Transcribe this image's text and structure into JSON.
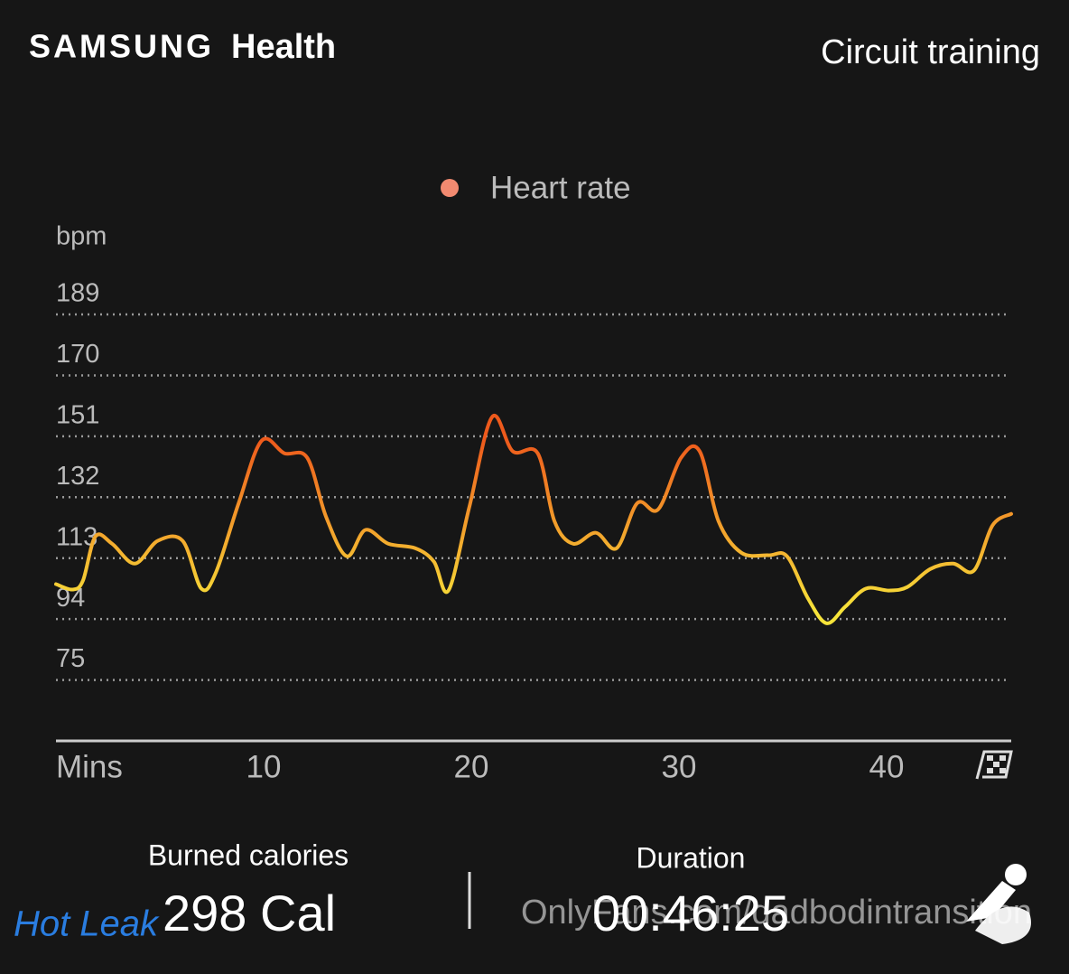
{
  "header": {
    "brand": "SAMSUNG",
    "app": "Health",
    "activity": "Circuit training"
  },
  "chart_data": {
    "type": "line",
    "legend": "Heart rate",
    "legend_color": "#f28a70",
    "y_label": "bpm",
    "x_label": "Mins",
    "x": [
      0,
      0.8,
      1.3,
      1.9,
      2.7,
      3.8,
      4.9,
      6.1,
      7,
      7.7,
      8.8,
      9.9,
      11,
      12.1,
      13,
      14,
      14.9,
      16,
      17.3,
      18.2,
      18.9,
      19.9,
      21,
      22,
      23.2,
      24,
      24.9,
      26,
      27,
      28,
      29,
      30.1,
      31,
      31.9,
      33,
      34.3,
      35.2,
      36.2,
      37.1,
      38,
      39,
      40.1,
      41,
      42.1,
      43.2,
      44.2,
      45.1,
      46
    ],
    "series": [
      {
        "name": "Heart rate",
        "color": "#f28a70",
        "values": [
          104.9,
          103.2,
          106,
          119.8,
          117.5,
          111.3,
          118.4,
          118.4,
          103.5,
          108.5,
          130.2,
          149.6,
          145.7,
          144.3,
          126,
          113.6,
          121.8,
          117.5,
          116.1,
          111.9,
          102.9,
          128.8,
          157,
          146.3,
          145.7,
          124.6,
          117.5,
          120.9,
          116.1,
          130.2,
          128.2,
          144.3,
          146.3,
          124.6,
          114.7,
          113.9,
          113.6,
          100.6,
          92.7,
          97.8,
          103.5,
          102.9,
          104,
          109.6,
          111.3,
          109.1,
          123.2,
          126.8
        ]
      }
    ],
    "gradient": {
      "high": "#ee5a1c",
      "low": "#f7e43a"
    },
    "xlim": [
      0,
      46
    ],
    "xticks": [
      10,
      20,
      30,
      40
    ],
    "ylim": [
      56,
      200
    ],
    "yticks": [
      75,
      94,
      113,
      132,
      151,
      170,
      189
    ],
    "grid": true
  },
  "stats": {
    "calories_label": "Burned calories",
    "calories": "298",
    "calories_unit": "Cal",
    "duration_label": "Duration",
    "duration": "00:46:25"
  },
  "watermarks": {
    "site": "OnlyFans.com/dadbodintransition",
    "logo": "Hot Leak"
  }
}
